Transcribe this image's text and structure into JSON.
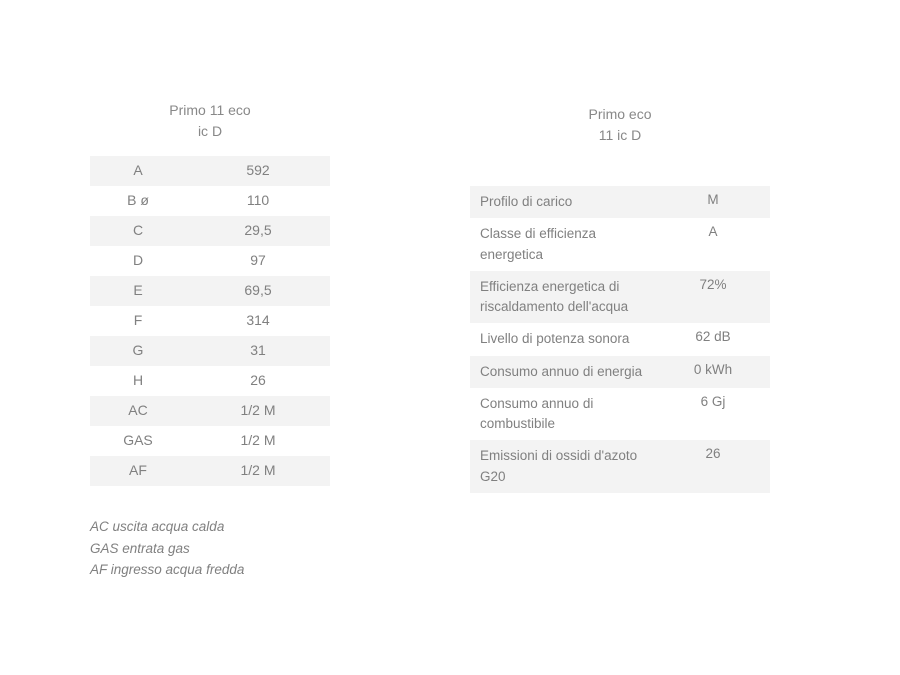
{
  "colors": {
    "background": "#ffffff",
    "text": "#808080",
    "zebra": "#f3f3f3"
  },
  "left_table": {
    "header_line1": "Primo 11 eco",
    "header_line2": "ic D",
    "rows": [
      {
        "key": "A",
        "value": "592"
      },
      {
        "key": "B ø",
        "value": "110"
      },
      {
        "key": "C",
        "value": "29,5"
      },
      {
        "key": "D",
        "value": "97"
      },
      {
        "key": "E",
        "value": "69,5"
      },
      {
        "key": "F",
        "value": "314"
      },
      {
        "key": "G",
        "value": "31"
      },
      {
        "key": "H",
        "value": "26"
      },
      {
        "key": "AC",
        "value": "1/2 M"
      },
      {
        "key": "GAS",
        "value": "1/2 M"
      },
      {
        "key": "AF",
        "value": "1/2 M"
      }
    ],
    "footnotes": [
      "AC uscita acqua calda",
      "GAS entrata gas",
      "AF ingresso acqua fredda"
    ]
  },
  "right_table": {
    "header_line1": "Primo eco",
    "header_line2": "11 ic D",
    "rows": [
      {
        "key": "Profilo di carico",
        "value": "M"
      },
      {
        "key": "Classe di efficienza energetica",
        "value": "A"
      },
      {
        "key": "Efficienza energetica di riscaldamento dell'acqua",
        "value": "72%"
      },
      {
        "key": "Livello di potenza sonora",
        "value": "62 dB"
      },
      {
        "key": "Consumo annuo di energia",
        "value": "0 kWh"
      },
      {
        "key": "Consumo annuo di combustibile",
        "value": "6 Gj"
      },
      {
        "key": "Emissioni di ossidi d'azoto G20",
        "value": "26"
      }
    ]
  }
}
